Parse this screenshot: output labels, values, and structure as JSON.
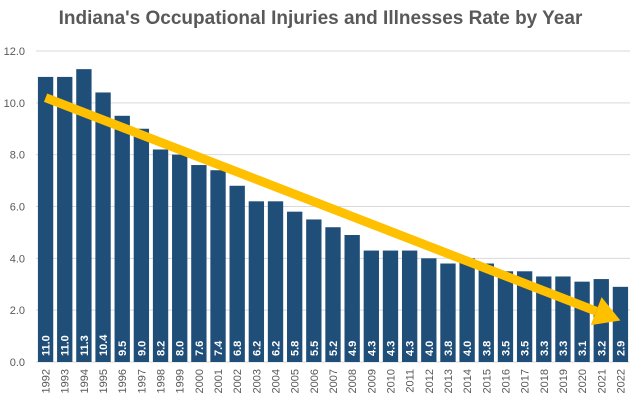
{
  "chart_data": {
    "type": "bar",
    "title": "Indiana's Occupational Injuries and Illnesses Rate by Year",
    "categories": [
      "1992",
      "1993",
      "1994",
      "1995",
      "1996",
      "1997",
      "1998",
      "1999",
      "2000",
      "2001",
      "2002",
      "2003",
      "2004",
      "2005",
      "2006",
      "2007",
      "2008",
      "2009",
      "2010",
      "2011",
      "2012",
      "2013",
      "2014",
      "2015",
      "2016",
      "2017",
      "2018",
      "2019",
      "2020",
      "2021",
      "2022"
    ],
    "values": [
      11.0,
      11.0,
      11.3,
      10.4,
      9.5,
      9.0,
      8.2,
      8.0,
      7.6,
      7.4,
      6.8,
      6.2,
      6.2,
      5.8,
      5.5,
      5.2,
      4.9,
      4.3,
      4.3,
      4.3,
      4.0,
      3.8,
      4.0,
      3.8,
      3.5,
      3.5,
      3.3,
      3.3,
      3.1,
      3.2,
      2.9
    ],
    "data_labels": [
      "11.0",
      "11.0",
      "11.3",
      "10.4",
      "9.5",
      "9.0",
      "8.2",
      "8.0",
      "7.6",
      "7.4",
      "6.8",
      "6.2",
      "6.2",
      "5.8",
      "5.5",
      "5.2",
      "4.9",
      "4.3",
      "4.3",
      "4.3",
      "4.0",
      "3.8",
      "4.0",
      "3.8",
      "3.5",
      "3.5",
      "3.3",
      "3.3",
      "3.1",
      "3.2",
      "2.9"
    ],
    "y_ticks": [
      "0.0",
      "2.0",
      "4.0",
      "6.0",
      "8.0",
      "10.0",
      "12.0"
    ],
    "ylim": [
      0,
      12
    ],
    "xlabel": "",
    "ylabel": "",
    "grid": true,
    "legend": "none",
    "trend_arrow": {
      "from": {
        "x": "1992",
        "y": 10.2
      },
      "to": {
        "x": "2022",
        "y": 1.6
      }
    },
    "colors": {
      "bar": "#1F4E79",
      "arrow": "#FFC000",
      "grid": "#D9D9D9",
      "text": "#595959"
    }
  }
}
